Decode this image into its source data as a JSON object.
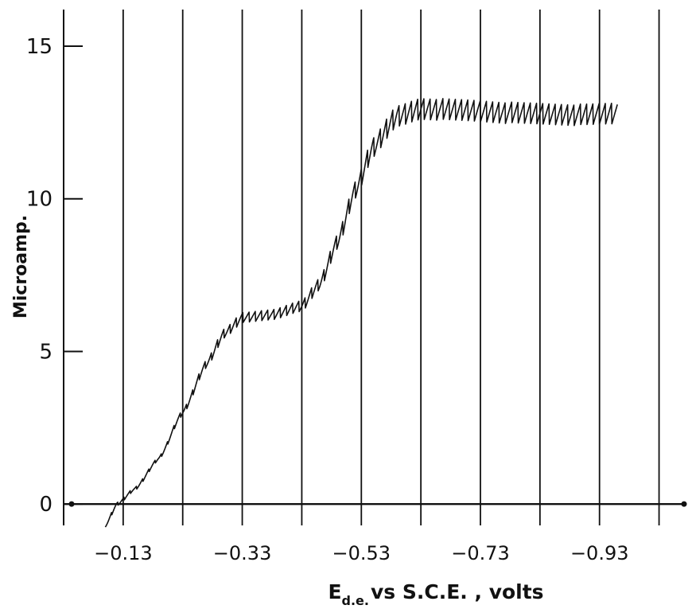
{
  "chart_data": {
    "type": "line",
    "title": "",
    "ylabel": "Microamp.",
    "xlabel": {
      "main": "E",
      "subscript": "d.e.",
      "rest": "vs  S.C.E. ,  volts"
    },
    "xlim": [
      -0.03,
      -1.08
    ],
    "ylim": [
      -0.7,
      16.2
    ],
    "x_tick_labels": [
      "-0.13",
      "-0.33",
      "-0.53",
      "-0.73",
      "-0.93"
    ],
    "x_tick_values": [
      -0.13,
      -0.33,
      -0.53,
      -0.73,
      -0.93
    ],
    "y_tick_labels": [
      "0",
      "5",
      "10",
      "15"
    ],
    "y_tick_values": [
      0,
      5,
      10,
      15
    ],
    "vertical_grid": [
      -0.13,
      -0.23,
      -0.33,
      -0.43,
      -0.53,
      -0.63,
      -0.73,
      -0.83,
      -0.93,
      -1.03
    ],
    "series": [
      {
        "values": [
          {
            "x": -0.1,
            "y": -0.7
          },
          {
            "x": -0.12,
            "y": 0.0
          },
          {
            "x": -0.15,
            "y": 0.5
          },
          {
            "x": -0.19,
            "y": 1.5
          },
          {
            "x": -0.23,
            "y": 3.0
          },
          {
            "x": -0.27,
            "y": 4.6
          },
          {
            "x": -0.3,
            "y": 5.6
          },
          {
            "x": -0.33,
            "y": 6.1
          },
          {
            "x": -0.38,
            "y": 6.2
          },
          {
            "x": -0.43,
            "y": 6.5
          },
          {
            "x": -0.46,
            "y": 7.2
          },
          {
            "x": -0.49,
            "y": 8.6
          },
          {
            "x": -0.52,
            "y": 10.3
          },
          {
            "x": -0.55,
            "y": 11.7
          },
          {
            "x": -0.59,
            "y": 12.7
          },
          {
            "x": -0.63,
            "y": 12.95
          },
          {
            "x": -0.7,
            "y": 12.9
          },
          {
            "x": -0.8,
            "y": 12.8
          },
          {
            "x": -0.9,
            "y": 12.75
          },
          {
            "x": -0.96,
            "y": 12.8
          }
        ],
        "oscillation_amplitude": 0.45
      }
    ]
  }
}
